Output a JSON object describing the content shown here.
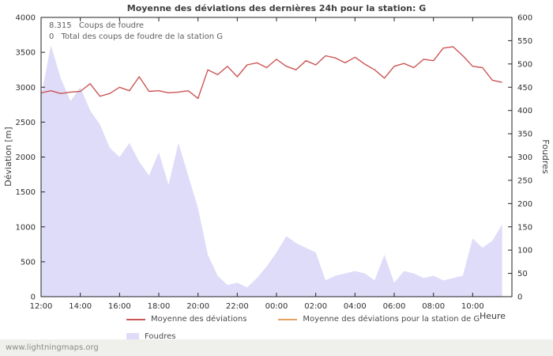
{
  "title": "Moyenne des déviations des dernières 24h pour la station: G",
  "annotations": {
    "strike_count": "8.315",
    "strike_label": "Coups de foudre",
    "station_count": "0",
    "station_label": "Total des coups de foudre de la station G"
  },
  "footer": "www.lightningmaps.org",
  "legend": {
    "deviation": "Moyenne des déviations",
    "station_deviation": "Moyenne des déviations pour la station de G",
    "strikes": "Foudres"
  },
  "colors": {
    "deviation_line": "#cc5555",
    "station_line": "#e8a060",
    "strikes_fill": "#dedcf8",
    "axis": "#222222"
  },
  "chart_data": {
    "type": "line+area",
    "title": "Moyenne des déviations des dernières 24h pour la station: G",
    "x_label": "Heure",
    "x_range_hours": [
      0,
      24
    ],
    "x_tick_hours": [
      0,
      2,
      4,
      6,
      8,
      10,
      12,
      14,
      16,
      18,
      20,
      22
    ],
    "x_tick_labels": [
      "12:00",
      "14:00",
      "16:00",
      "18:00",
      "20:00",
      "22:00",
      "00:00",
      "02:00",
      "04:00",
      "06:00",
      "08:00",
      "10:00"
    ],
    "y_left": {
      "label": "Déviation [m]",
      "range": [
        0,
        4000
      ],
      "ticks": [
        0,
        500,
        1000,
        1500,
        2000,
        2500,
        3000,
        3500,
        4000
      ]
    },
    "y_right": {
      "label": "Foudres",
      "range": [
        0,
        600
      ],
      "ticks": [
        0,
        50,
        100,
        150,
        200,
        250,
        300,
        350,
        400,
        450,
        500,
        550,
        600
      ]
    },
    "x_hours": [
      0,
      0.5,
      1,
      1.5,
      2,
      2.5,
      3,
      3.5,
      4,
      4.5,
      5,
      5.5,
      6,
      6.5,
      7,
      7.5,
      8,
      8.5,
      9,
      9.5,
      10,
      10.5,
      11,
      11.5,
      12,
      12.5,
      13,
      13.5,
      14,
      14.5,
      15,
      15.5,
      16,
      16.5,
      17,
      17.5,
      18,
      18.5,
      19,
      19.5,
      20,
      20.5,
      21,
      21.5,
      22,
      22.5,
      23,
      23.5
    ],
    "series": [
      {
        "name": "Foudres",
        "kind": "area",
        "axis": "right",
        "color": "#dedcf8",
        "values": [
          430,
          540,
          470,
          420,
          450,
          400,
          370,
          320,
          300,
          330,
          290,
          260,
          310,
          240,
          330,
          260,
          190,
          90,
          45,
          25,
          30,
          20,
          40,
          65,
          95,
          130,
          115,
          105,
          95,
          35,
          45,
          50,
          55,
          50,
          35,
          90,
          30,
          55,
          50,
          40,
          45,
          35,
          40,
          45,
          125,
          105,
          120,
          155
        ]
      },
      {
        "name": "Moyenne des déviations",
        "kind": "line",
        "axis": "left",
        "color": "#cc5555",
        "values": [
          2920,
          2950,
          2910,
          2930,
          2940,
          3050,
          2870,
          2910,
          3000,
          2950,
          3150,
          2940,
          2950,
          2920,
          2930,
          2950,
          2840,
          3250,
          3180,
          3300,
          3150,
          3320,
          3350,
          3280,
          3400,
          3300,
          3250,
          3380,
          3320,
          3450,
          3420,
          3350,
          3430,
          3330,
          3250,
          3130,
          3300,
          3340,
          3280,
          3400,
          3380,
          3560,
          3580,
          3450,
          3300,
          3280,
          3100,
          3070
        ]
      },
      {
        "name": "Moyenne des déviations pour la station de G",
        "kind": "line",
        "axis": "left",
        "color": "#e8a060",
        "values": []
      }
    ]
  }
}
